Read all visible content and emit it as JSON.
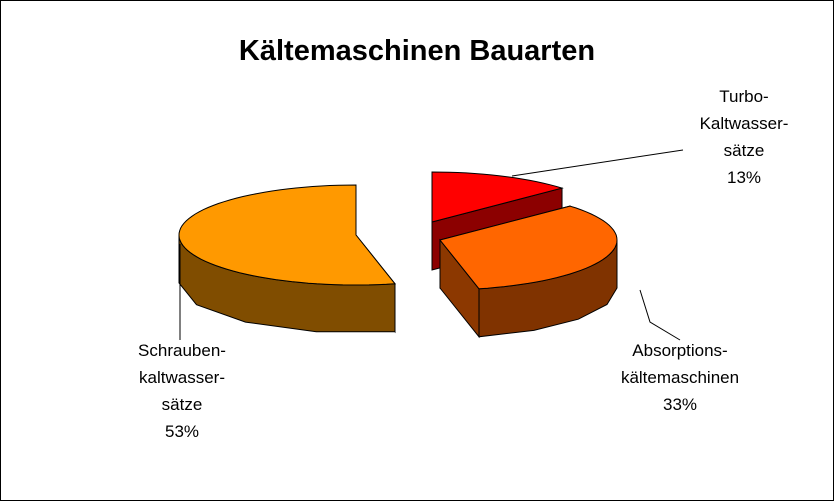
{
  "chart_data": {
    "type": "pie3d",
    "title": "Kältemaschinen Bauarten",
    "categories": [
      "Turbo-Kaltwasser-sätze",
      "Absorptions-kältemaschinen",
      "Schrauben-kaltwasser-sätze"
    ],
    "values": [
      13,
      33,
      53
    ],
    "value_labels": [
      "13%",
      "33%",
      "53%"
    ],
    "colors": [
      "#ff0000",
      "#ff6600",
      "#ff9900"
    ]
  }
}
